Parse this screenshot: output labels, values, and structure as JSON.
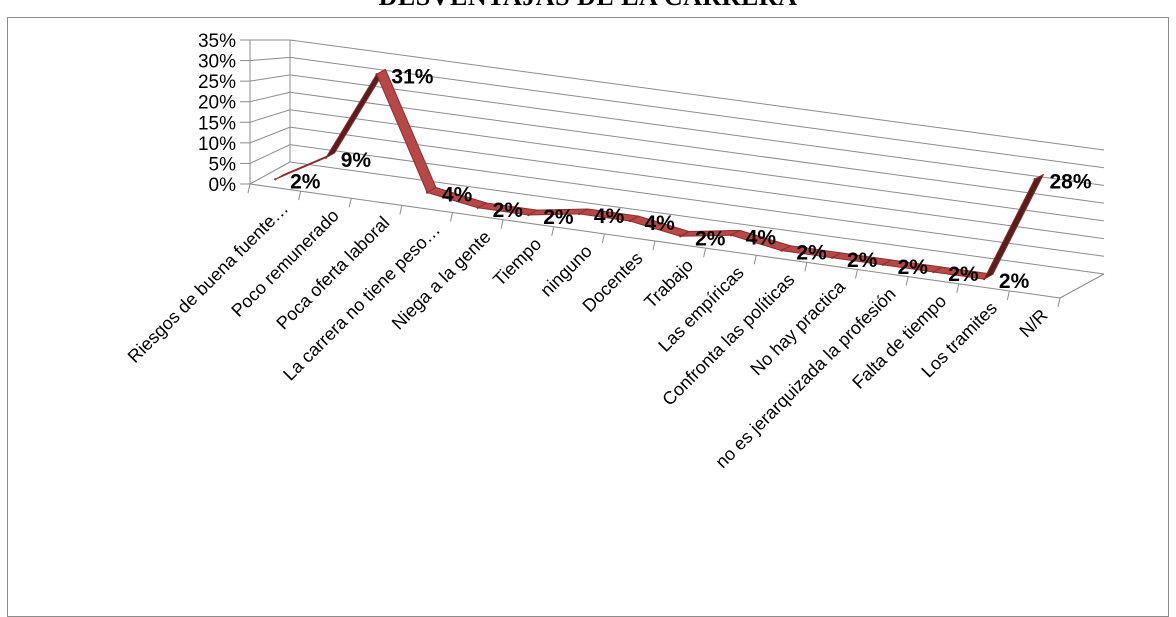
{
  "chart_data": {
    "type": "line",
    "title": "DESVENTAJAS DE LA CARRERA",
    "categories": [
      "Riesgos de buena fuente…",
      "Poco remunerado",
      "Poca oferta laboral",
      "La carrera no tiene peso…",
      "Niega a la gente",
      "Tiempo",
      "ninguno",
      "Docentes",
      "Trabajo",
      "Las empíricas",
      "Confronta las políticas",
      "No hay practica",
      "no es jerarquizada la profesión",
      "Falta de tiempo",
      "Los tramites",
      "N/R"
    ],
    "values": [
      2,
      9,
      31,
      4,
      2,
      2,
      4,
      4,
      2,
      4,
      2,
      2,
      2,
      2,
      2,
      28
    ],
    "data_labels": [
      "2%",
      "9%",
      "31%",
      "4%",
      "2%",
      "2%",
      "4%",
      "4%",
      "2%",
      "4%",
      "2%",
      "2%",
      "2%",
      "2%",
      "2%",
      "28%"
    ],
    "y_ticks": [
      "0%",
      "5%",
      "10%",
      "15%",
      "20%",
      "25%",
      "30%",
      "35%"
    ],
    "ylim": [
      0,
      35
    ],
    "grid": true,
    "legend": "none",
    "colors": {
      "ribbon_top": "#b84848",
      "ribbon_edge": "#8a2e2e",
      "ribbon_dark": "#5a1c1c",
      "grid": "#8c8c8c"
    }
  }
}
